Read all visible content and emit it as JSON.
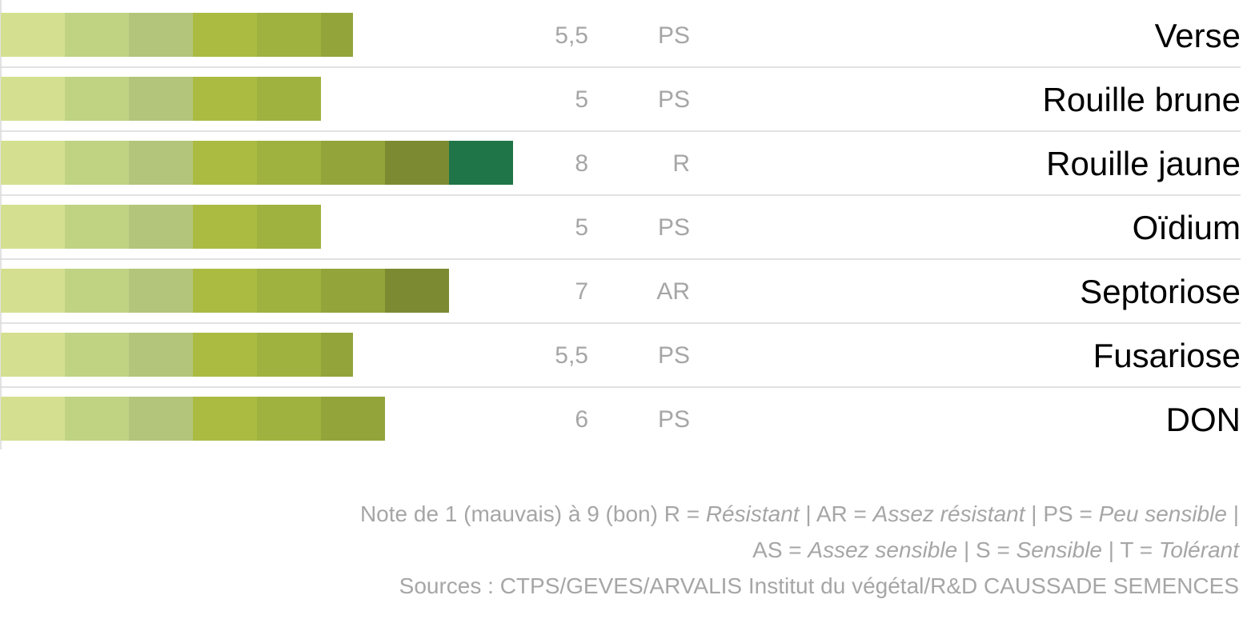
{
  "chart_data": {
    "type": "bar",
    "categories": [
      "Verse",
      "Rouille brune",
      "Rouille jaune",
      "Oïdium",
      "Septoriose",
      "Fusariose",
      "DON"
    ],
    "values": [
      5.5,
      5,
      8,
      5,
      7,
      5.5,
      6
    ],
    "value_labels": [
      "5,5",
      "5",
      "8",
      "5",
      "7",
      "5,5",
      "6"
    ],
    "ratings": [
      "PS",
      "PS",
      "R",
      "PS",
      "AR",
      "PS",
      "PS"
    ],
    "segment_colors": [
      "#d4e08f",
      "#bfd383",
      "#b2c57a",
      "#abbb42",
      "#9fb13e",
      "#93a43a",
      "#7c8b32",
      "#1f7547"
    ]
  },
  "footer": {
    "lines": [
      [
        {
          "text": "Note de 1 (mauvais) à 9 (bon) R = "
        },
        {
          "text": "Résistant",
          "italic": true
        },
        {
          "text": " | AR = "
        },
        {
          "text": "Assez résistant",
          "italic": true
        },
        {
          "text": " | PS = "
        },
        {
          "text": "Peu sensible",
          "italic": true
        },
        {
          "text": " |"
        }
      ],
      [
        {
          "text": "AS = "
        },
        {
          "text": "Assez sensible",
          "italic": true
        },
        {
          "text": " | S = "
        },
        {
          "text": "Sensible",
          "italic": true
        },
        {
          "text": " | T = "
        },
        {
          "text": "Tolérant",
          "italic": true
        }
      ],
      [
        {
          "text": "Sources : CTPS/GEVES/ARVALIS Institut du végétal/R&D CAUSSADE SEMENCES"
        }
      ]
    ]
  }
}
